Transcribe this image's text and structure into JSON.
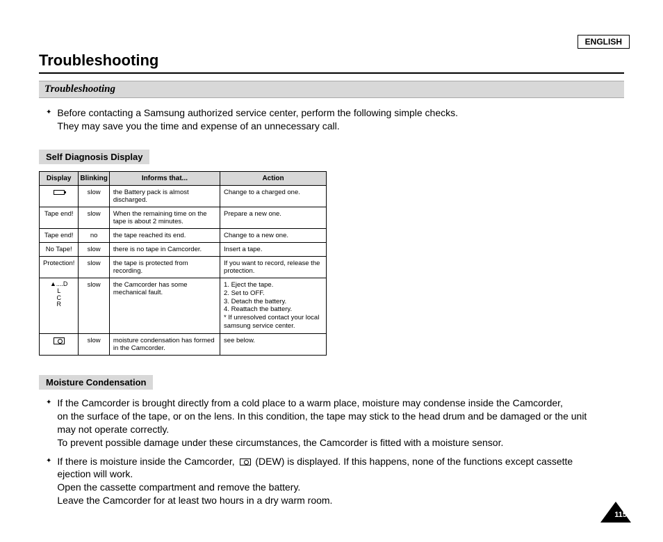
{
  "language_label": "ENGLISH",
  "title": "Troubleshooting",
  "subtitle": "Troubleshooting",
  "intro": {
    "line1": "Before contacting a Samsung authorized service center, perform the following simple checks.",
    "line2": "They may save you the time and expense of an unnecessary call."
  },
  "section1_label": "Self Diagnosis Display",
  "table": {
    "headers": {
      "display": "Display",
      "blinking": "Blinking",
      "informs": "Informs that...",
      "action": "Action"
    },
    "rows": [
      {
        "display_type": "battery",
        "blinking": "slow",
        "informs": "the Battery pack is almost discharged.",
        "action": "Change to a charged one."
      },
      {
        "display_text": "Tape end!",
        "blinking": "slow",
        "informs": "When the remaining time on the tape is about 2 minutes.",
        "action": "Prepare a new one."
      },
      {
        "display_text": "Tape end!",
        "blinking": "no",
        "informs": "the tape reached its end.",
        "action": "Change to a new one."
      },
      {
        "display_text": "No Tape!",
        "blinking": "slow",
        "informs": "there is no tape in Camcorder.",
        "action": "Insert a tape."
      },
      {
        "display_text": "Protection!",
        "blinking": "slow",
        "informs": "the tape is protected from recording.",
        "action": "If you want to record, release the protection."
      },
      {
        "display_type": "dlcr",
        "blinking": "slow",
        "informs": "the Camcorder has some mechanical fault.",
        "action_lines": [
          "1. Eject the tape.",
          "2. Set to OFF.",
          "3. Detach the battery.",
          "4. Reattach the battery.",
          "  * If unresolved contact your local",
          "    samsung service center."
        ]
      },
      {
        "display_type": "dew",
        "blinking": "slow",
        "informs": "moisture condensation has formed in the Camcorder.",
        "action": "see below."
      }
    ]
  },
  "dlcr_lines": [
    "▲....D",
    "L",
    "C",
    "R"
  ],
  "section2_label": "Moisture Condensation",
  "moisture": {
    "p1a": "If the Camcorder is brought directly from a cold place to a warm place, moisture may condense inside the Camcorder,",
    "p1b": "on the surface of the tape, or on the lens. In this condition, the tape may stick to the head drum and be damaged or the unit",
    "p1c": "may not operate correctly.",
    "p1d": "To prevent possible damage under these circumstances, the Camcorder is fitted with a moisture sensor.",
    "p2a_prefix": "If there is moisture inside the Camcorder, ",
    "p2a_suffix": " (DEW) is displayed. If this happens, none of the functions except cassette",
    "p2b": "ejection will work.",
    "p2c": "Open the cassette compartment and remove the battery.",
    "p2d": "Leave the Camcorder for at least two hours in a dry warm room."
  },
  "page_number": "115"
}
